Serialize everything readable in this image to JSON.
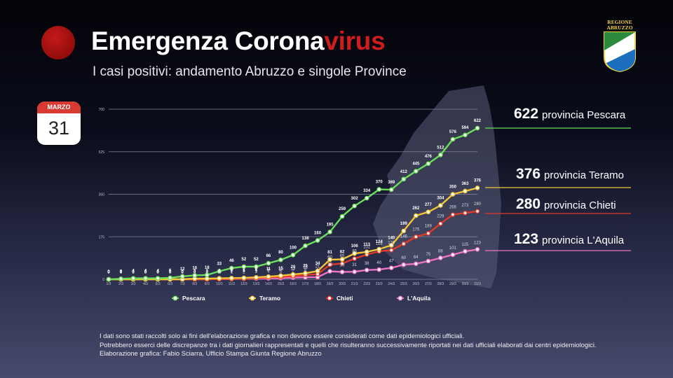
{
  "header": {
    "title_main": "Emergenza Corona",
    "title_highlight": "virus",
    "subtitle": "I casi positivi: andamento Abruzzo e singole Province",
    "logo_text_line1": "REGIONE",
    "logo_text_line2": "ABRUZZO"
  },
  "calendar": {
    "month": "MARZO",
    "day": "31"
  },
  "callouts": [
    {
      "value": "622",
      "label": "provincia Pescara",
      "color": "#6be05a"
    },
    {
      "value": "376",
      "label": "provincia Teramo",
      "color": "#f3c53a"
    },
    {
      "value": "280",
      "label": "provincia Chieti",
      "color": "#e23a2a"
    },
    {
      "value": "123",
      "label": "provincia L'Aquila",
      "color": "#ee74c6"
    }
  ],
  "footer": {
    "line1": "I dati sono stati raccolti solo ai fini dell'elaborazione grafica e non devono essere considerati come dati epidemiologici ufficiali.",
    "line2": "Potrebbero esserci delle discrepanze tra i dati giornalieri rappresentati e quelli che risulteranno successivamente riportati nei dati ufficiali elaborati dai centri epidemiologici.",
    "line3": "Elaborazione grafica: Fabio Sciarra, Ufficio Stampa Giunta Regione Abruzzo"
  },
  "colors": {
    "background": "#0b0d1c",
    "title_highlight": "#cf1d1d",
    "calendar_header": "#d73a32"
  },
  "chart_data": {
    "type": "line",
    "x": [
      "1/3",
      "2/3",
      "3/3",
      "4/3",
      "5/3",
      "6/3",
      "7/3",
      "8/3",
      "9/3",
      "10/3",
      "11/3",
      "12/3",
      "13/3",
      "14/3",
      "15/3",
      "16/3",
      "17/3",
      "18/3",
      "19/3",
      "20/3",
      "21/3",
      "22/3",
      "23/3",
      "24/3",
      "25/3",
      "26/3",
      "27/3",
      "28/3",
      "29/3",
      "30/3",
      "31/3"
    ],
    "yticks": [
      0,
      175,
      350,
      525,
      700
    ],
    "ylim": [
      0,
      700
    ],
    "grid": true,
    "legend_position": "bottom",
    "series": [
      {
        "name": "Pescara",
        "color": "#6be05a",
        "values": [
          0,
          2,
          4,
          4,
          4,
          6,
          12,
          16,
          18,
          33,
          46,
          52,
          52,
          66,
          80,
          100,
          138,
          160,
          195,
          259,
          302,
          334,
          370,
          369,
          412,
          445,
          476,
          512,
          576,
          594,
          622
        ]
      },
      {
        "name": "Teramo",
        "color": "#f3c53a",
        "values": [
          0,
          0,
          0,
          0,
          0,
          0,
          0,
          3,
          3,
          4,
          5,
          6,
          8,
          11,
          15,
          20,
          25,
          34,
          81,
          82,
          106,
          113,
          124,
          140,
          199,
          262,
          277,
          304,
          350,
          363,
          376
        ]
      },
      {
        "name": "Chieti",
        "color": "#e23a2a",
        "values": [
          0,
          0,
          0,
          0,
          0,
          0,
          0,
          0,
          0,
          1,
          2,
          3,
          5,
          8,
          10,
          13,
          18,
          21,
          60,
          65,
          85,
          102,
          115,
          120,
          146,
          175,
          189,
          229,
          266,
          273,
          280
        ]
      },
      {
        "name": "L'Aquila",
        "color": "#ee74c6",
        "values": [
          0,
          0,
          0,
          0,
          0,
          0,
          0,
          0,
          0,
          1,
          1,
          2,
          3,
          4,
          5,
          7,
          8,
          9,
          33,
          30,
          31,
          38,
          40,
          47,
          60,
          64,
          75,
          88,
          101,
          115,
          123
        ]
      }
    ]
  }
}
